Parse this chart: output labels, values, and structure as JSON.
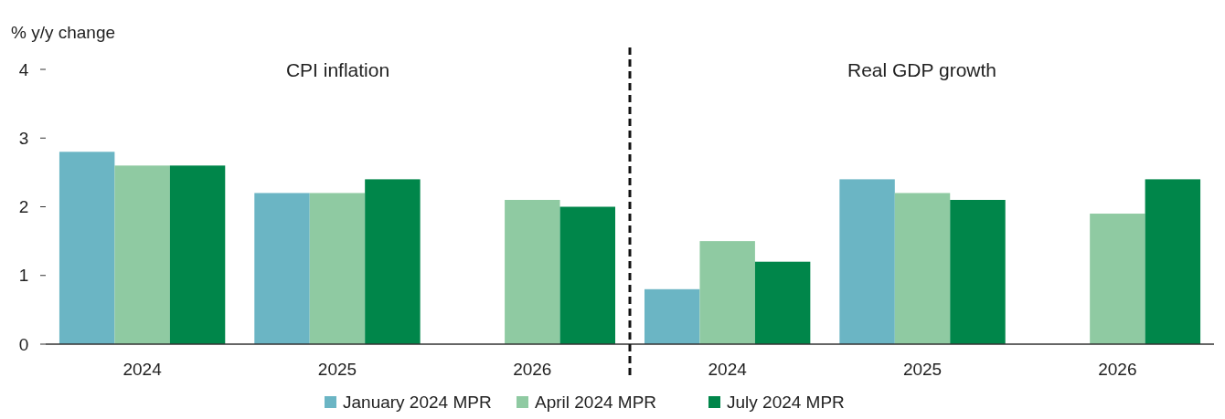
{
  "chart_data": {
    "type": "bar",
    "ylabel": "% y/y change",
    "categories": [
      "2024",
      "2025",
      "2026",
      "2024",
      "2025",
      "2026"
    ],
    "series": [
      {
        "name": "January 2024 MPR",
        "color": "#6bb5c4",
        "values": [
          2.8,
          2.2,
          null,
          0.8,
          2.4,
          null
        ]
      },
      {
        "name": "April 2024 MPR",
        "color": "#8fcaa2",
        "values": [
          2.6,
          2.2,
          2.1,
          1.5,
          2.2,
          1.9
        ]
      },
      {
        "name": "July 2024 MPR",
        "color": "#00864a",
        "values": [
          2.6,
          2.4,
          2.0,
          1.2,
          2.1,
          2.4
        ]
      }
    ],
    "annotations": [
      "CPI inflation",
      "Real GDP growth"
    ],
    "ylim": [
      0,
      4
    ],
    "yticks": [
      0,
      1,
      2,
      3,
      4
    ],
    "grid": false,
    "legend": "bottom"
  }
}
